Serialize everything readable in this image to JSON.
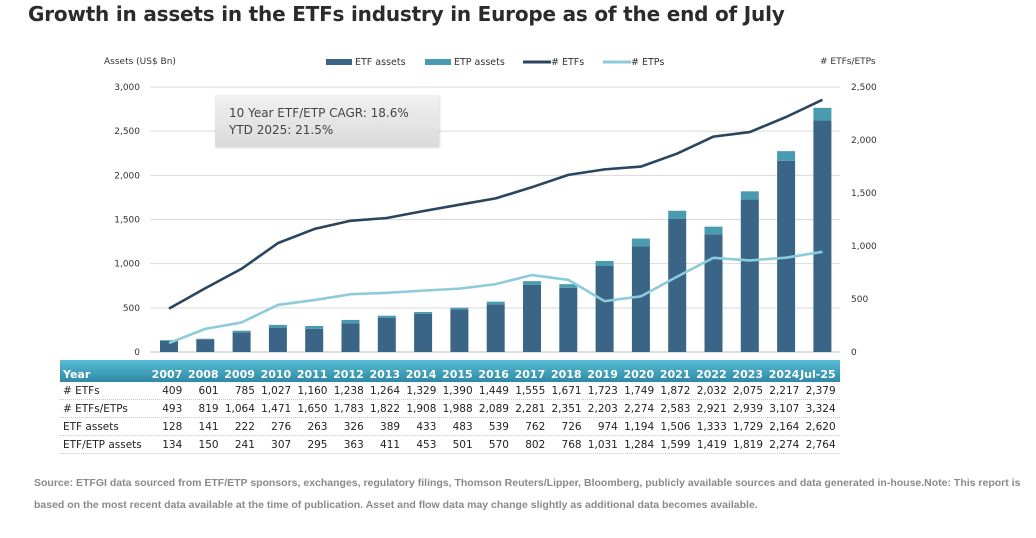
{
  "page_title": "Growth in assets in the ETFs industry in Europe as of the end of July",
  "callout": {
    "line1": "10 Year ETF/ETP CAGR: 18.6%",
    "line2": "YTD 2025: 21.5%"
  },
  "colors": {
    "etf_assets": "#3b6587",
    "etp_assets": "#4a9bb0",
    "num_etfs": "#2a4560",
    "num_etps": "#8ccbdc",
    "table_header": "#3a9cb8"
  },
  "chart_data": {
    "type": "bar",
    "title": "Growth in assets in the ETFs industry in Europe as of the end of July",
    "categories": [
      "2007",
      "2008",
      "2009",
      "2010",
      "2011",
      "2012",
      "2013",
      "2014",
      "2015",
      "2016",
      "2017",
      "2018",
      "2019",
      "2020",
      "2021",
      "2022",
      "2023",
      "2024",
      "Jul-25"
    ],
    "left_axis": {
      "label": "Assets (US$ Bn)",
      "range": [
        0,
        3000
      ],
      "ticks": [
        "0",
        "500",
        "1,000",
        "1,500",
        "2,000",
        "2,500",
        "3,000"
      ],
      "tick_values": [
        0,
        500,
        1000,
        1500,
        2000,
        2500,
        3000
      ]
    },
    "right_axis": {
      "label": "# ETFs/ETPs",
      "range": [
        0,
        2500
      ],
      "ticks": [
        "0",
        "500",
        "1,000",
        "1,500",
        "2,000",
        "2,500"
      ],
      "tick_values": [
        0,
        500,
        1000,
        1500,
        2000,
        2500
      ]
    },
    "grid": true,
    "legend_position": "top",
    "series": [
      {
        "name": "ETF assets",
        "kind": "stacked-bar",
        "axis": "left",
        "values": [
          128,
          141,
          222,
          276,
          263,
          326,
          389,
          433,
          483,
          539,
          762,
          726,
          974,
          1194,
          1506,
          1333,
          1729,
          2164,
          2620
        ]
      },
      {
        "name": "ETP assets",
        "kind": "stacked-bar",
        "axis": "left",
        "values": [
          6,
          9,
          19,
          31,
          32,
          37,
          22,
          20,
          18,
          31,
          40,
          42,
          57,
          90,
          93,
          86,
          90,
          110,
          144
        ]
      },
      {
        "name": "# ETFs",
        "kind": "line",
        "axis": "right",
        "values": [
          409,
          601,
          785,
          1027,
          1160,
          1238,
          1264,
          1329,
          1390,
          1449,
          1555,
          1671,
          1723,
          1749,
          1872,
          2032,
          2075,
          2217,
          2379
        ]
      },
      {
        "name": "# ETPs",
        "kind": "line",
        "axis": "right",
        "values": [
          84,
          218,
          279,
          444,
          490,
          545,
          558,
          579,
          598,
          640,
          726,
          680,
          480,
          525,
          711,
          889,
          864,
          890,
          945
        ]
      }
    ],
    "legend": [
      "ETF assets",
      "ETP assets",
      "# ETFs",
      "# ETPs"
    ]
  },
  "table": {
    "header_label": "Year",
    "columns": [
      "2007",
      "2008",
      "2009",
      "2010",
      "2011",
      "2012",
      "2013",
      "2014",
      "2015",
      "2016",
      "2017",
      "2018",
      "2019",
      "2020",
      "2021",
      "2022",
      "2023",
      "2024",
      "Jul-25"
    ],
    "rows": [
      {
        "label": "# ETFs",
        "values": [
          "409",
          "601",
          "785",
          "1,027",
          "1,160",
          "1,238",
          "1,264",
          "1,329",
          "1,390",
          "1,449",
          "1,555",
          "1,671",
          "1,723",
          "1,749",
          "1,872",
          "2,032",
          "2,075",
          "2,217",
          "2,379"
        ]
      },
      {
        "label": "# ETFs/ETPs",
        "values": [
          "493",
          "819",
          "1,064",
          "1,471",
          "1,650",
          "1,783",
          "1,822",
          "1,908",
          "1,988",
          "2,089",
          "2,281",
          "2,351",
          "2,203",
          "2,274",
          "2,583",
          "2,921",
          "2,939",
          "3,107",
          "3,324"
        ]
      },
      {
        "label": "ETF assets",
        "values": [
          "128",
          "141",
          "222",
          "276",
          "263",
          "326",
          "389",
          "433",
          "483",
          "539",
          "762",
          "726",
          "974",
          "1,194",
          "1,506",
          "1,333",
          "1,729",
          "2,164",
          "2,620"
        ]
      },
      {
        "label": "ETF/ETP assets",
        "values": [
          "134",
          "150",
          "241",
          "307",
          "295",
          "363",
          "411",
          "453",
          "501",
          "570",
          "802",
          "768",
          "1,031",
          "1,284",
          "1,599",
          "1,419",
          "1,819",
          "2,274",
          "2,764"
        ]
      }
    ]
  },
  "source_note": "Source: ETFGI data sourced from ETF/ETP sponsors, exchanges, regulatory filings, Thomson Reuters/Lipper, Bloomberg, publicly available sources and data generated in-house.Note: This report is based on the most recent data available at the time of publication. Asset and flow data may change slightly as additional data becomes available."
}
